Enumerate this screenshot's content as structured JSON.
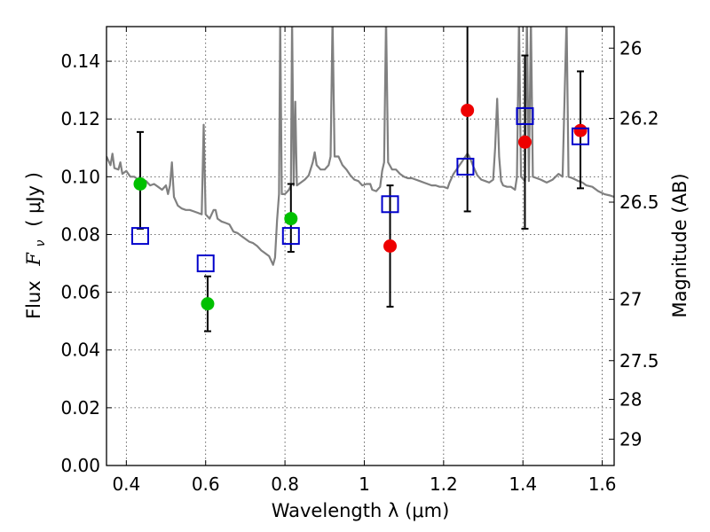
{
  "chart_data": {
    "type": "scatter",
    "title": "",
    "xlabel": "Wavelength  λ (μm)",
    "ylabel_left": {
      "prefix": "Flux",
      "symbol": "F",
      "subscript": "ν",
      "unit": "( μJy )"
    },
    "ylabel_right": "Magnitude (AB)",
    "xlim": [
      0.35,
      1.63
    ],
    "ylim": [
      0.0,
      0.152
    ],
    "x_ticks": [
      0.4,
      0.6,
      0.8,
      1.0,
      1.2,
      1.4,
      1.6
    ],
    "x_tick_labels": [
      "0.4",
      "0.6",
      "0.8",
      "1",
      "1.2",
      "1.4",
      "1.6"
    ],
    "y_ticks": [
      0.0,
      0.02,
      0.04,
      0.06,
      0.08,
      0.1,
      0.12,
      0.14
    ],
    "y_tick_labels": [
      "0.00",
      "0.02",
      "0.04",
      "0.06",
      "0.08",
      "0.10",
      "0.12",
      "0.14"
    ],
    "right_ticks": [
      {
        "label": "26",
        "mag": 26.0
      },
      {
        "label": "26.2",
        "mag": 26.2
      },
      {
        "label": "26.5",
        "mag": 26.5
      },
      {
        "label": "27",
        "mag": 27.0
      },
      {
        "label": "27.5",
        "mag": 27.5
      },
      {
        "label": "28",
        "mag": 28.0
      },
      {
        "label": "29",
        "mag": 29.0
      }
    ],
    "grid": true,
    "colors": {
      "green": "#00c000",
      "red": "#ee0000",
      "model_box": "#0000cc",
      "sed": "#808080",
      "errorbar": "#000000"
    },
    "series": [
      {
        "name": "green-points",
        "color": "#00c000",
        "marker": "circle",
        "points": [
          {
            "x": 0.435,
            "y": 0.0975,
            "ylo": 0.082,
            "yhi": 0.1155
          },
          {
            "x": 0.605,
            "y": 0.056,
            "ylo": 0.0465,
            "yhi": 0.0655
          },
          {
            "x": 0.815,
            "y": 0.0855,
            "ylo": 0.074,
            "yhi": 0.0975
          }
        ]
      },
      {
        "name": "red-points",
        "color": "#ee0000",
        "marker": "circle",
        "points": [
          {
            "x": 1.065,
            "y": 0.076,
            "ylo": 0.055,
            "yhi": 0.097
          },
          {
            "x": 1.26,
            "y": 0.123,
            "ylo": 0.088,
            "yhi": 0.155
          },
          {
            "x": 1.405,
            "y": 0.112,
            "ylo": 0.082,
            "yhi": 0.142
          },
          {
            "x": 1.545,
            "y": 0.116,
            "ylo": 0.096,
            "yhi": 0.1365
          }
        ]
      },
      {
        "name": "model-squares",
        "color": "#0000cc",
        "marker": "square",
        "points": [
          {
            "x": 0.435,
            "y": 0.0795
          },
          {
            "x": 0.6,
            "y": 0.07
          },
          {
            "x": 0.815,
            "y": 0.0795
          },
          {
            "x": 1.065,
            "y": 0.0905
          },
          {
            "x": 1.255,
            "y": 0.1035
          },
          {
            "x": 1.405,
            "y": 0.121
          },
          {
            "x": 1.545,
            "y": 0.114
          }
        ]
      }
    ],
    "sed_model": {
      "name": "model-spectrum",
      "color": "#808080",
      "points": [
        [
          0.35,
          0.107
        ],
        [
          0.36,
          0.104
        ],
        [
          0.365,
          0.108
        ],
        [
          0.37,
          0.103
        ],
        [
          0.38,
          0.1025
        ],
        [
          0.385,
          0.105
        ],
        [
          0.39,
          0.101
        ],
        [
          0.4,
          0.102
        ],
        [
          0.41,
          0.1
        ],
        [
          0.42,
          0.1
        ],
        [
          0.43,
          0.099
        ],
        [
          0.44,
          0.098
        ],
        [
          0.45,
          0.0985
        ],
        [
          0.46,
          0.097
        ],
        [
          0.47,
          0.0975
        ],
        [
          0.48,
          0.0965
        ],
        [
          0.49,
          0.0955
        ],
        [
          0.5,
          0.097
        ],
        [
          0.505,
          0.094
        ],
        [
          0.51,
          0.097
        ],
        [
          0.515,
          0.105
        ],
        [
          0.52,
          0.093
        ],
        [
          0.53,
          0.09
        ],
        [
          0.54,
          0.089
        ],
        [
          0.55,
          0.0885
        ],
        [
          0.56,
          0.0885
        ],
        [
          0.57,
          0.088
        ],
        [
          0.58,
          0.0875
        ],
        [
          0.59,
          0.087
        ],
        [
          0.595,
          0.118
        ],
        [
          0.6,
          0.087
        ],
        [
          0.61,
          0.0855
        ],
        [
          0.62,
          0.0885
        ],
        [
          0.625,
          0.0885
        ],
        [
          0.63,
          0.0855
        ],
        [
          0.64,
          0.0845
        ],
        [
          0.65,
          0.084
        ],
        [
          0.66,
          0.0835
        ],
        [
          0.67,
          0.081
        ],
        [
          0.68,
          0.0805
        ],
        [
          0.69,
          0.0795
        ],
        [
          0.7,
          0.0785
        ],
        [
          0.71,
          0.0775
        ],
        [
          0.72,
          0.077
        ],
        [
          0.73,
          0.076
        ],
        [
          0.74,
          0.0745
        ],
        [
          0.75,
          0.0735
        ],
        [
          0.76,
          0.0725
        ],
        [
          0.765,
          0.071
        ],
        [
          0.77,
          0.0695
        ],
        [
          0.775,
          0.072
        ],
        [
          0.78,
          0.085
        ],
        [
          0.785,
          0.094
        ],
        [
          0.788,
          0.155
        ],
        [
          0.792,
          0.094
        ],
        [
          0.8,
          0.094
        ],
        [
          0.81,
          0.0955
        ],
        [
          0.815,
          0.097
        ],
        [
          0.818,
          0.155
        ],
        [
          0.822,
          0.097
        ],
        [
          0.826,
          0.126
        ],
        [
          0.83,
          0.097
        ],
        [
          0.84,
          0.098
        ],
        [
          0.85,
          0.099
        ],
        [
          0.86,
          0.1005
        ],
        [
          0.87,
          0.105
        ],
        [
          0.875,
          0.1085
        ],
        [
          0.88,
          0.104
        ],
        [
          0.89,
          0.1025
        ],
        [
          0.9,
          0.1025
        ],
        [
          0.91,
          0.104
        ],
        [
          0.915,
          0.107
        ],
        [
          0.92,
          0.155
        ],
        [
          0.925,
          0.107
        ],
        [
          0.935,
          0.107
        ],
        [
          0.945,
          0.104
        ],
        [
          0.955,
          0.1025
        ],
        [
          0.965,
          0.1005
        ],
        [
          0.975,
          0.099
        ],
        [
          0.985,
          0.0985
        ],
        [
          0.995,
          0.097
        ],
        [
          1.005,
          0.0975
        ],
        [
          1.015,
          0.0975
        ],
        [
          1.02,
          0.0955
        ],
        [
          1.03,
          0.095
        ],
        [
          1.04,
          0.0965
        ],
        [
          1.045,
          0.102
        ],
        [
          1.05,
          0.105
        ],
        [
          1.055,
          0.155
        ],
        [
          1.06,
          0.105
        ],
        [
          1.07,
          0.1025
        ],
        [
          1.08,
          0.1025
        ],
        [
          1.09,
          0.101
        ],
        [
          1.1,
          0.1
        ],
        [
          1.11,
          0.0995
        ],
        [
          1.12,
          0.0995
        ],
        [
          1.13,
          0.099
        ],
        [
          1.14,
          0.0985
        ],
        [
          1.15,
          0.098
        ],
        [
          1.16,
          0.0975
        ],
        [
          1.17,
          0.097
        ],
        [
          1.18,
          0.097
        ],
        [
          1.19,
          0.0965
        ],
        [
          1.2,
          0.0965
        ],
        [
          1.21,
          0.096
        ],
        [
          1.215,
          0.098
        ],
        [
          1.225,
          0.101
        ],
        [
          1.235,
          0.103
        ],
        [
          1.245,
          0.105
        ],
        [
          1.255,
          0.107
        ],
        [
          1.26,
          0.108
        ],
        [
          1.265,
          0.107
        ],
        [
          1.275,
          0.1035
        ],
        [
          1.285,
          0.1005
        ],
        [
          1.295,
          0.099
        ],
        [
          1.305,
          0.0985
        ],
        [
          1.315,
          0.098
        ],
        [
          1.325,
          0.099
        ],
        [
          1.33,
          0.11
        ],
        [
          1.335,
          0.127
        ],
        [
          1.34,
          0.107
        ],
        [
          1.345,
          0.0985
        ],
        [
          1.35,
          0.097
        ],
        [
          1.36,
          0.0965
        ],
        [
          1.37,
          0.0965
        ],
        [
          1.38,
          0.0955
        ],
        [
          1.385,
          0.1
        ],
        [
          1.39,
          0.155
        ],
        [
          1.395,
          0.1
        ],
        [
          1.405,
          0.0985
        ],
        [
          1.41,
          0.155
        ],
        [
          1.415,
          0.0985
        ],
        [
          1.42,
          0.155
        ],
        [
          1.425,
          0.1
        ],
        [
          1.435,
          0.0995
        ],
        [
          1.445,
          0.099
        ],
        [
          1.46,
          0.098
        ],
        [
          1.475,
          0.099
        ],
        [
          1.49,
          0.101
        ],
        [
          1.5,
          0.1
        ],
        [
          1.51,
          0.155
        ],
        [
          1.515,
          0.1
        ],
        [
          1.525,
          0.0995
        ],
        [
          1.54,
          0.0985
        ],
        [
          1.55,
          0.098
        ],
        [
          1.56,
          0.097
        ],
        [
          1.575,
          0.0965
        ],
        [
          1.59,
          0.095
        ],
        [
          1.605,
          0.094
        ],
        [
          1.62,
          0.0935
        ],
        [
          1.63,
          0.093
        ]
      ]
    }
  }
}
